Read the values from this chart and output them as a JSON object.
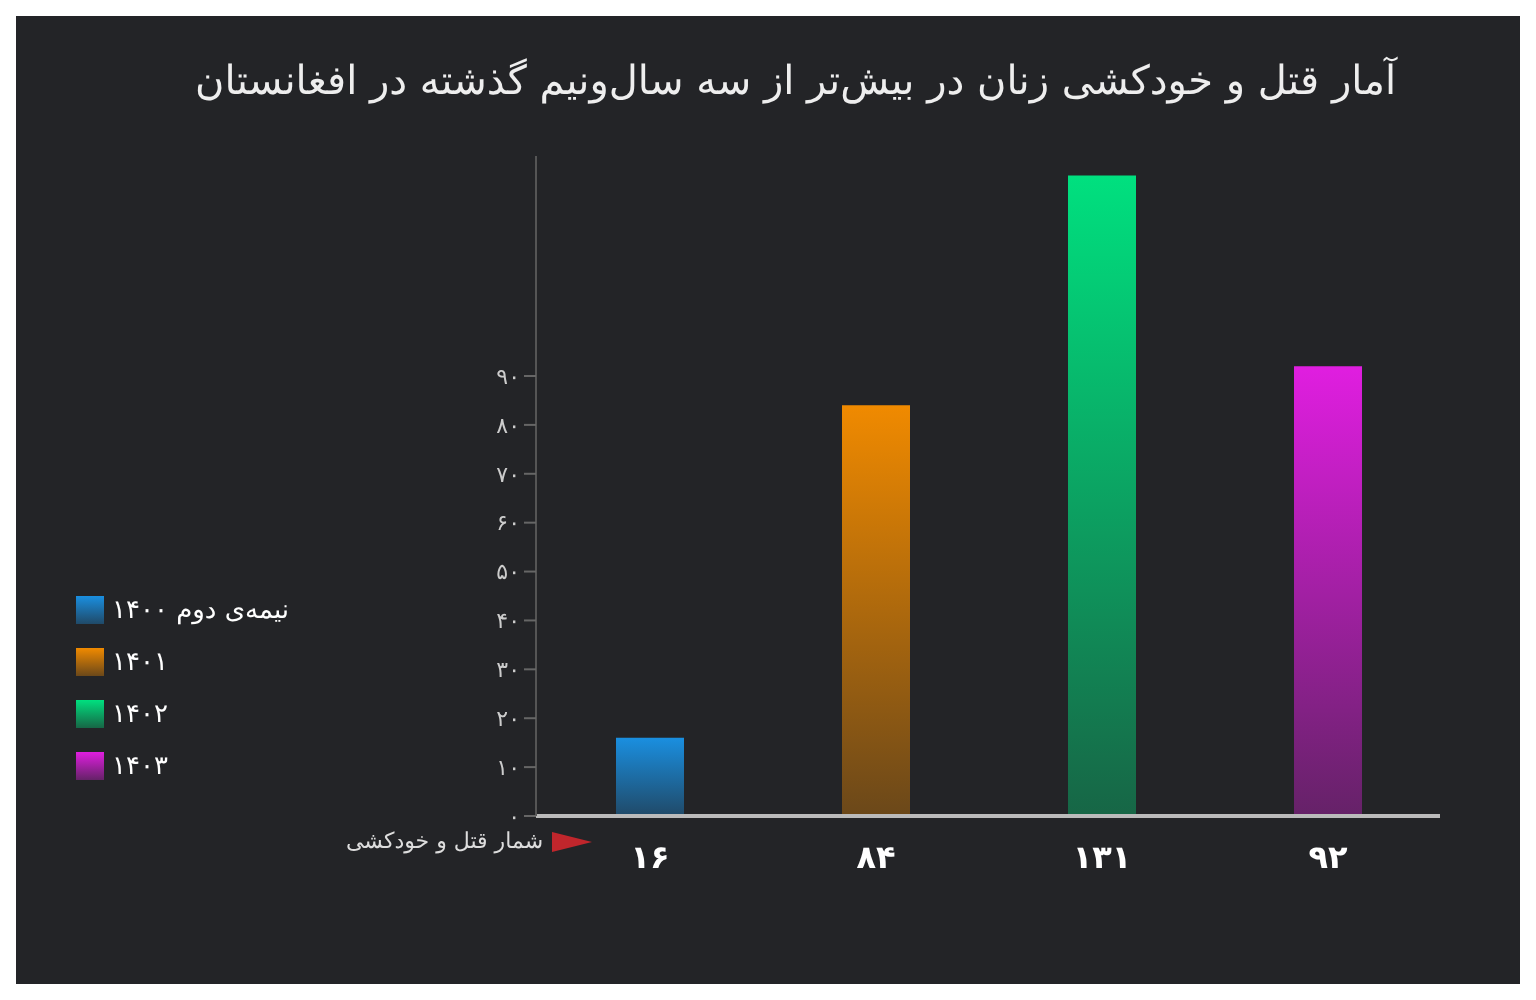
{
  "chart_data": {
    "type": "bar",
    "title": "آمار قتل و خودکشی زنان در بیش‌تر از سه سال‌ونیم گذشته در افغانستان",
    "xlabel": "شمار قتل و خودکشی",
    "categories": [
      null,
      null,
      null,
      null
    ],
    "stacked": true,
    "series": [
      {
        "name": "نیمه‌ی دوم ۱۴۰۰",
        "color": "#1a8fe0",
        "values": [
          16,
          null,
          null,
          null
        ],
        "value_labels": [
          "۱۶",
          null,
          null,
          null
        ]
      },
      {
        "name": "۱۴۰۱",
        "color": "#f08a00",
        "values": [
          null,
          84,
          null,
          null
        ],
        "value_labels": [
          null,
          "۸۴",
          null,
          null
        ]
      },
      {
        "name": "۱۴۰۲",
        "color": "#00e07f",
        "values": [
          null,
          null,
          131,
          null
        ],
        "value_labels": [
          null,
          null,
          "۱۳۱",
          null
        ]
      },
      {
        "name": "۱۴۰۳",
        "color": "#e01ee0",
        "values": [
          null,
          null,
          null,
          92
        ],
        "value_labels": [
          null,
          null,
          null,
          "۹۲"
        ]
      }
    ],
    "ylim": [
      0,
      135
    ],
    "yticks": [
      {
        "value": 0,
        "label": "۰"
      },
      {
        "value": 10,
        "label": "۱۰"
      },
      {
        "value": 20,
        "label": "۲۰"
      },
      {
        "value": 30,
        "label": "۳۰"
      },
      {
        "value": 40,
        "label": "۴۰"
      },
      {
        "value": 50,
        "label": "۵۰"
      },
      {
        "value": 60,
        "label": "۶۰"
      },
      {
        "value": 70,
        "label": "۷۰"
      },
      {
        "value": 80,
        "label": "۸۰"
      },
      {
        "value": 90,
        "label": "۹۰"
      }
    ],
    "legend": "left"
  }
}
